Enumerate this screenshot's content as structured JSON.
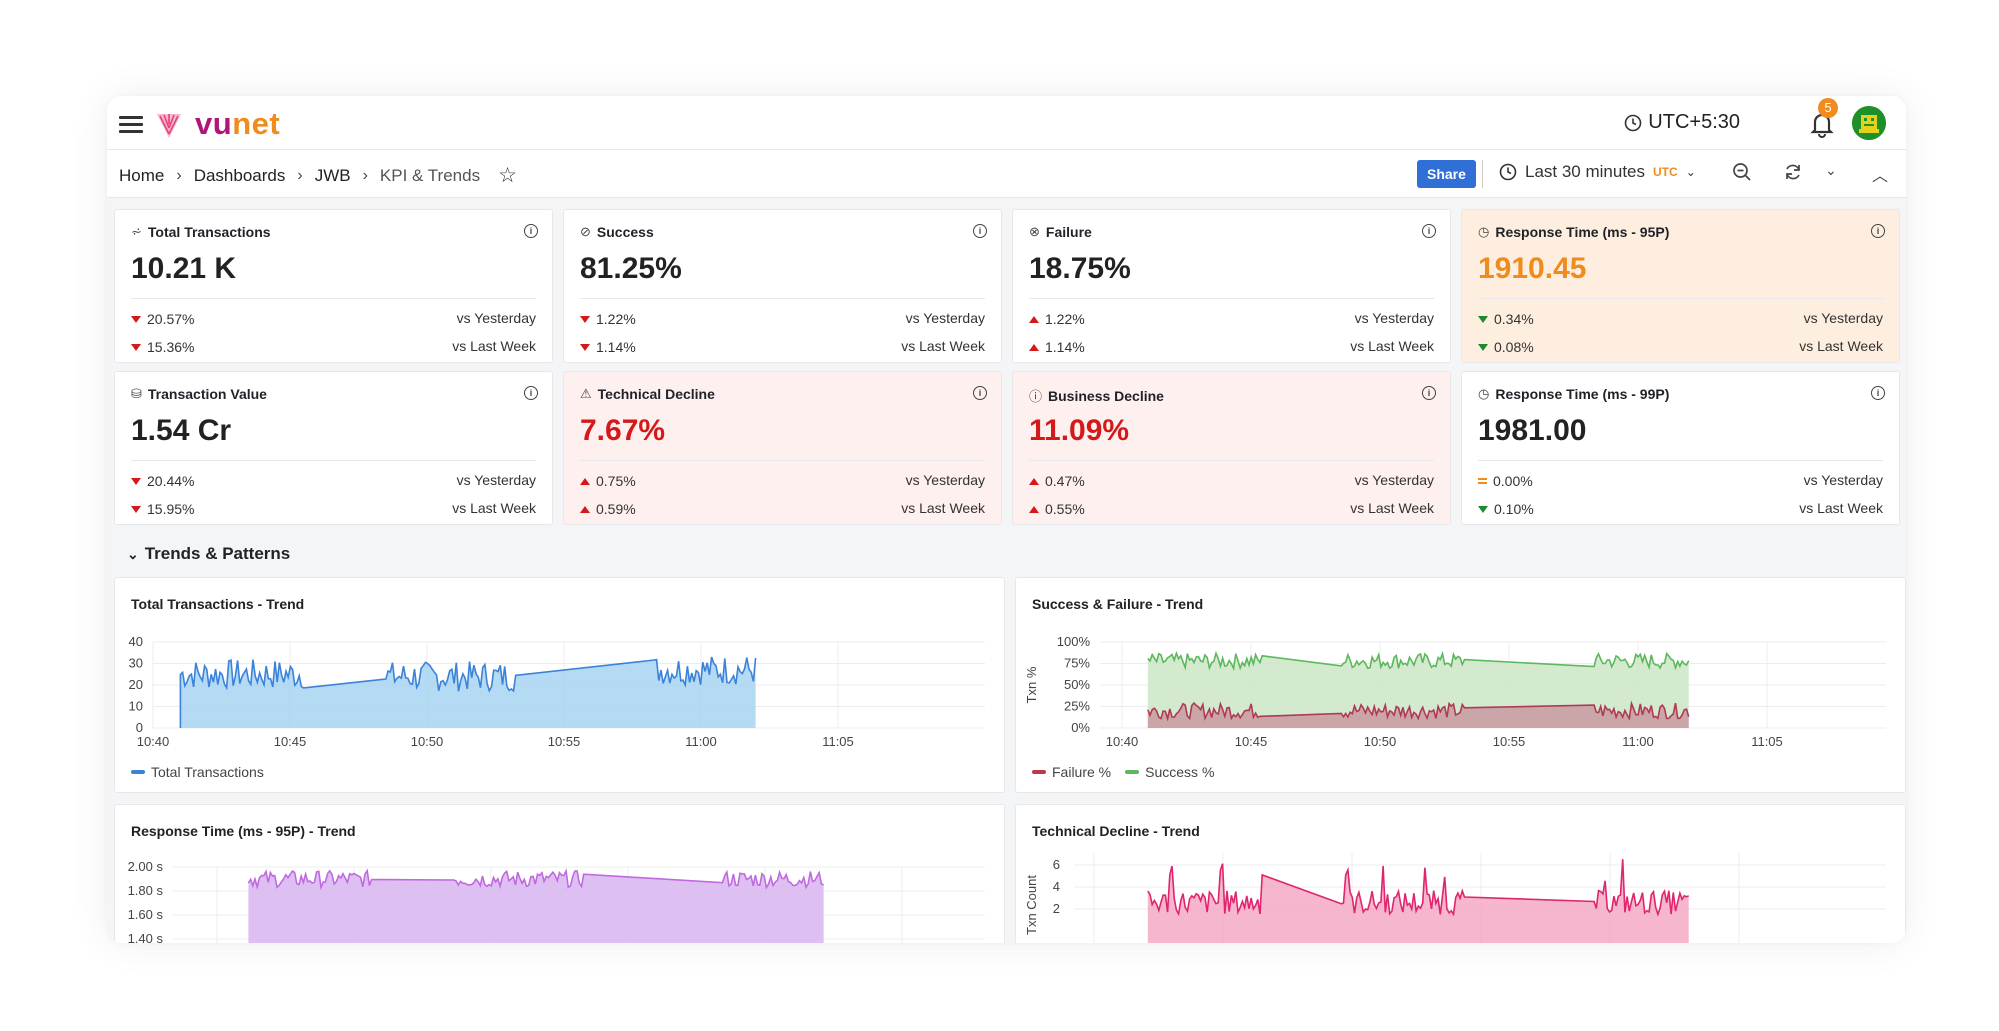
{
  "app": {
    "logo_text": "vunet",
    "timezone": "UTC+5:30",
    "notifications": "5"
  },
  "colors": {
    "accent": "#2f6fd6",
    "brand_magenta": "#b0157a",
    "brand_orange": "#f08b1d",
    "down": "#d4191b",
    "good": "#1c8a2e"
  },
  "breadcrumb": [
    "Home",
    "Dashboards",
    "JWB",
    "KPI & Trends"
  ],
  "toolbar": {
    "share_label": "Share",
    "time_range": "Last 30 minutes",
    "time_zone": "UTC"
  },
  "kpis": [
    {
      "title": "Total Transactions",
      "icon": "chart-icon",
      "value": "10.21 K",
      "tone": "",
      "rows": [
        {
          "dir": "down",
          "pct": "20.57%",
          "label": "vs Yesterday"
        },
        {
          "dir": "down",
          "pct": "15.36%",
          "label": "vs Last Week"
        }
      ]
    },
    {
      "title": "Success",
      "icon": "check-circle-icon",
      "value": "81.25%",
      "tone": "",
      "rows": [
        {
          "dir": "down",
          "pct": "1.22%",
          "label": "vs Yesterday"
        },
        {
          "dir": "down",
          "pct": "1.14%",
          "label": "vs Last Week"
        }
      ]
    },
    {
      "title": "Failure",
      "icon": "x-circle-icon",
      "value": "18.75%",
      "tone": "",
      "rows": [
        {
          "dir": "up",
          "pct": "1.22%",
          "label": "vs Yesterday"
        },
        {
          "dir": "up",
          "pct": "1.14%",
          "label": "vs Last Week"
        }
      ]
    },
    {
      "title": "Response Time (ms - 95P)",
      "icon": "clock-icon",
      "value": "1910.45",
      "tone": "orange",
      "rows": [
        {
          "dir": "gdown",
          "pct": "0.34%",
          "label": "vs Yesterday"
        },
        {
          "dir": "gdown",
          "pct": "0.08%",
          "label": "vs Last Week"
        }
      ]
    },
    {
      "title": "Transaction Value",
      "icon": "money-icon",
      "value": "1.54 Cr",
      "tone": "",
      "rows": [
        {
          "dir": "down",
          "pct": "20.44%",
          "label": "vs Yesterday"
        },
        {
          "dir": "down",
          "pct": "15.95%",
          "label": "vs Last Week"
        }
      ]
    },
    {
      "title": "Technical Decline",
      "icon": "warning-icon",
      "value": "7.67%",
      "tone": "red",
      "rows": [
        {
          "dir": "up",
          "pct": "0.75%",
          "label": "vs Yesterday"
        },
        {
          "dir": "up",
          "pct": "0.59%",
          "label": "vs Last Week"
        }
      ]
    },
    {
      "title": "Business Decline",
      "icon": "info-circle-icon",
      "value": "11.09%",
      "tone": "red",
      "rows": [
        {
          "dir": "up",
          "pct": "0.47%",
          "label": "vs Yesterday"
        },
        {
          "dir": "up",
          "pct": "0.55%",
          "label": "vs Last Week"
        }
      ]
    },
    {
      "title": "Response Time (ms - 99P)",
      "icon": "clock-icon",
      "value": "1981.00",
      "tone": "",
      "rows": [
        {
          "dir": "eq",
          "pct": "0.00%",
          "label": "vs Yesterday"
        },
        {
          "dir": "gdown",
          "pct": "0.10%",
          "label": "vs Last Week"
        }
      ]
    }
  ],
  "section": {
    "title": "Trends & Patterns"
  },
  "panels": {
    "total_tx": {
      "title": "Total Transactions - Trend",
      "legend": [
        "Total Transactions"
      ]
    },
    "succ_fail": {
      "title": "Success & Failure - Trend",
      "legend": [
        "Failure %",
        "Success %"
      ]
    },
    "resp": {
      "title": "Response Time (ms - 95P) -  Trend"
    },
    "tech": {
      "title": "Technical Decline - Trend"
    }
  },
  "chart_data": [
    {
      "type": "line",
      "title": "Total Transactions - Trend",
      "x_ticks": [
        "10:40",
        "10:45",
        "10:50",
        "10:55",
        "11:00",
        "11:05"
      ],
      "y_ticks": [
        "40",
        "30",
        "20",
        "10",
        "0"
      ],
      "ylim": [
        0,
        40
      ],
      "series": [
        {
          "name": "Total Transactions",
          "color": "#3b82d8",
          "segments": [
            [
              "10:40:30",
              "10:45:30",
              25
            ],
            [
              "10:48:30",
              "10:53:20",
              24
            ],
            [
              "10:58:20",
              "11:02:00",
              27
            ]
          ]
        }
      ]
    },
    {
      "type": "line",
      "title": "Success & Failure - Trend",
      "ylabel": "Txn %",
      "x_ticks": [
        "10:40",
        "10:45",
        "10:50",
        "10:55",
        "11:00",
        "11:05"
      ],
      "y_ticks": [
        "100%",
        "75%",
        "50%",
        "25%",
        "0%"
      ],
      "ylim": [
        0,
        100
      ],
      "series": [
        {
          "name": "Failure %",
          "color": "#b03a55",
          "level": 20
        },
        {
          "name": "Success %",
          "color": "#5cb85c",
          "level": 78
        }
      ]
    },
    {
      "type": "line",
      "title": "Response Time (ms - 95P) -  Trend",
      "y_ticks": [
        "2.00 s",
        "1.80 s",
        "1.60 s",
        "1.40 s"
      ],
      "series": [
        {
          "name": "Response Time",
          "color": "#c06adf",
          "level": 1.9
        }
      ]
    },
    {
      "type": "bar",
      "title": "Technical Decline - Trend",
      "ylabel": "Txn Count",
      "y_ticks": [
        "6",
        "4",
        "2"
      ],
      "series": [
        {
          "name": "Technical Decline",
          "color": "#e0256e",
          "level": 2
        }
      ]
    }
  ]
}
